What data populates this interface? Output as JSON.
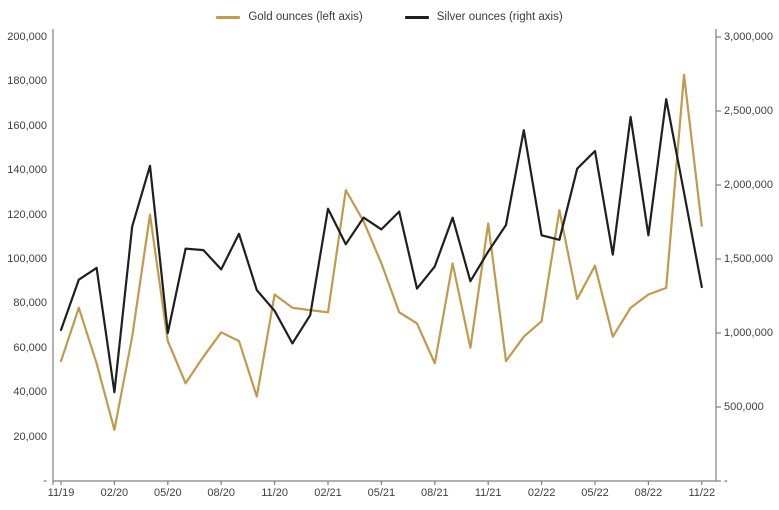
{
  "chart_data": {
    "type": "line",
    "title": "",
    "months": [
      "11/19",
      "12/19",
      "01/20",
      "02/20",
      "03/20",
      "04/20",
      "05/20",
      "06/20",
      "07/20",
      "08/20",
      "09/20",
      "10/20",
      "11/20",
      "12/20",
      "01/21",
      "02/21",
      "03/21",
      "04/21",
      "05/21",
      "06/21",
      "07/21",
      "08/21",
      "09/21",
      "10/21",
      "11/21",
      "12/21",
      "01/22",
      "02/22",
      "03/22",
      "04/22",
      "05/22",
      "06/22",
      "07/22",
      "08/22",
      "09/22",
      "10/22",
      "11/22"
    ],
    "x_tick_labels": [
      "11/19",
      "02/20",
      "05/20",
      "08/20",
      "11/20",
      "02/21",
      "05/21",
      "08/21",
      "11/21",
      "02/22",
      "05/22",
      "08/22",
      "11/22"
    ],
    "series": [
      {
        "name": "Gold ounces (left axis)",
        "axis": "left",
        "color": "#C19A4B",
        "values": [
          54000,
          78000,
          53000,
          23000,
          65000,
          120000,
          63000,
          44000,
          56000,
          67000,
          63000,
          38000,
          84000,
          78000,
          77000,
          76000,
          131000,
          117000,
          98000,
          76000,
          71000,
          53000,
          98000,
          60000,
          116000,
          54000,
          65000,
          72000,
          122000,
          82000,
          97000,
          65000,
          78000,
          84000,
          87000,
          183000,
          115000
        ]
      },
      {
        "name": "Silver ounces (right axis)",
        "axis": "right",
        "color": "#1f1f1f",
        "values": [
          1020000,
          1360000,
          1440000,
          600000,
          1720000,
          2130000,
          1000000,
          1570000,
          1560000,
          1430000,
          1670000,
          1290000,
          1150000,
          930000,
          1120000,
          1840000,
          1600000,
          1780000,
          1700000,
          1820000,
          1300000,
          1450000,
          1780000,
          1350000,
          1550000,
          1730000,
          2370000,
          1660000,
          1630000,
          2110000,
          2230000,
          1530000,
          2460000,
          1660000,
          2580000,
          1950000,
          1310000
        ]
      }
    ],
    "left_axis": {
      "min": 0,
      "max": 200000,
      "step": 20000,
      "tick_labels": [
        "200,000",
        "180,000",
        "160,000",
        "140,000",
        "120,000",
        "100,000",
        "80,000",
        "60,000",
        "40,000",
        "20,000",
        "-"
      ]
    },
    "right_axis": {
      "min": 0,
      "max": 3000000,
      "step": 500000,
      "tick_labels": [
        "3,000,000",
        "2,500,000",
        "2,000,000",
        "1,500,000",
        "1,000,000",
        "500,000",
        "-"
      ]
    },
    "legend_position": "top",
    "grid": "off"
  }
}
